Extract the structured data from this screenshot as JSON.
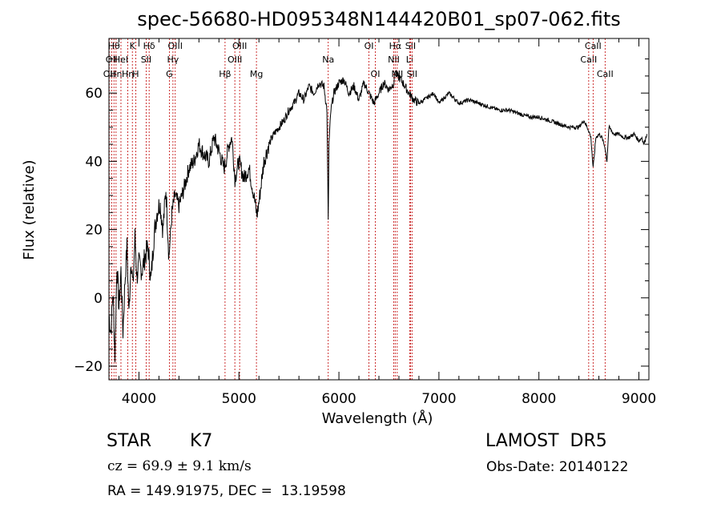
{
  "chart_data": {
    "type": "line",
    "title": "spec-56680-HD095348N144420B01_sp07-062.fits",
    "xlabel": "Wavelength (Å)",
    "ylabel": "Flux (relative)",
    "xlim": [
      3700,
      9100
    ],
    "ylim": [
      -24,
      76
    ],
    "xticks": [
      4000,
      5000,
      6000,
      7000,
      8000,
      9000
    ],
    "xtick_labels": [
      "4000",
      "5000",
      "6000",
      "7000",
      "8000",
      "9000"
    ],
    "yticks": [
      -20,
      0,
      20,
      40,
      60
    ],
    "ytick_labels": [
      "−20",
      "0",
      "20",
      "40",
      "60"
    ],
    "grid": false,
    "series": [
      {
        "x": [
          3700,
          3720,
          3740,
          3760,
          3780,
          3800,
          3820,
          3840,
          3860,
          3880,
          3900,
          3920,
          3940,
          3960,
          3980,
          4000,
          4030,
          4060,
          4090,
          4120,
          4150,
          4180,
          4210,
          4240,
          4270,
          4300,
          4330,
          4360,
          4400,
          4450,
          4500,
          4550,
          4600,
          4650,
          4700,
          4750,
          4800,
          4850,
          4870,
          4900,
          4930,
          4960,
          5000,
          5050,
          5100,
          5150,
          5180,
          5200,
          5250,
          5300,
          5350,
          5400,
          5450,
          5500,
          5550,
          5600,
          5650,
          5700,
          5750,
          5800,
          5850,
          5880,
          5893,
          5900,
          5920,
          5950,
          6000,
          6050,
          6100,
          6150,
          6200,
          6250,
          6300,
          6350,
          6400,
          6450,
          6500,
          6550,
          6563,
          6580,
          6620,
          6660,
          6700,
          6750,
          6800,
          6850,
          6900,
          6950,
          7000,
          7100,
          7200,
          7300,
          7400,
          7500,
          7600,
          7700,
          7800,
          7900,
          8000,
          8100,
          8200,
          8300,
          8400,
          8450,
          8498,
          8520,
          8542,
          8570,
          8600,
          8630,
          8662,
          8680,
          8700,
          8750,
          8800,
          8850,
          8900,
          8950,
          9000,
          9030,
          9050,
          9080
        ],
        "y": [
          -5,
          -10,
          2,
          -17,
          10,
          -3,
          8,
          -10,
          5,
          15,
          -5,
          12,
          3,
          18,
          6,
          10,
          8,
          12,
          15,
          5,
          18,
          25,
          28,
          20,
          32,
          12,
          25,
          30,
          27,
          32,
          38,
          40,
          45,
          42,
          40,
          47,
          43,
          38,
          40,
          45,
          47,
          35,
          40,
          35,
          38,
          30,
          24,
          28,
          40,
          45,
          48,
          50,
          52,
          55,
          57,
          60,
          58,
          62,
          60,
          63,
          62,
          55,
          22,
          45,
          55,
          60,
          63,
          64,
          60,
          62,
          58,
          63,
          60,
          57,
          60,
          63,
          61,
          63,
          67,
          65,
          64,
          62,
          60,
          58,
          57,
          58,
          59,
          60,
          57,
          60,
          57,
          58,
          57,
          56,
          55,
          55,
          54,
          53,
          53,
          52,
          51,
          50,
          50,
          52,
          49,
          47,
          38,
          47,
          48,
          47,
          44,
          40,
          50,
          48,
          48,
          47,
          47,
          48,
          46,
          47,
          45,
          48
        ]
      }
    ],
    "line_marks": [
      {
        "x": 3703,
        "label": "OII",
        "row": 2
      },
      {
        "x": 3727,
        "label": "OII",
        "row": 1
      },
      {
        "x": 3750,
        "label": "Hθ",
        "row": 0
      },
      {
        "x": 3771,
        "label": "Hη",
        "row": 2
      },
      {
        "x": 3820,
        "label": "HeI",
        "row": 1
      },
      {
        "x": 3889,
        "label": "Hη",
        "row": 2
      },
      {
        "x": 3934,
        "label": "K",
        "row": 0
      },
      {
        "x": 3968,
        "label": "H",
        "row": 2
      },
      {
        "x": 4072,
        "label": "SII",
        "row": 1
      },
      {
        "x": 4102,
        "label": "Hδ",
        "row": 0
      },
      {
        "x": 4304,
        "label": "G",
        "row": 2
      },
      {
        "x": 4340,
        "label": "Hγ",
        "row": 1
      },
      {
        "x": 4363,
        "label": "OIII",
        "row": 0
      },
      {
        "x": 4861,
        "label": "Hβ",
        "row": 2
      },
      {
        "x": 4959,
        "label": "OIII",
        "row": 1
      },
      {
        "x": 5007,
        "label": "OIII",
        "row": 0
      },
      {
        "x": 5175,
        "label": "Mg",
        "row": 2
      },
      {
        "x": 5893,
        "label": "Na",
        "row": 1
      },
      {
        "x": 6300,
        "label": "OI",
        "row": 0
      },
      {
        "x": 6364,
        "label": "OI",
        "row": 2
      },
      {
        "x": 6548,
        "label": "NII",
        "row": 1
      },
      {
        "x": 6563,
        "label": "Hα",
        "row": 0
      },
      {
        "x": 6583,
        "label": "NII",
        "row": 2
      },
      {
        "x": 6707,
        "label": "Li",
        "row": 1
      },
      {
        "x": 6716,
        "label": "SII",
        "row": 0
      },
      {
        "x": 6731,
        "label": "SII",
        "row": 2
      },
      {
        "x": 8498,
        "label": "CaII",
        "row": 1
      },
      {
        "x": 8542,
        "label": "CaII",
        "row": 0
      },
      {
        "x": 8662,
        "label": "CaII",
        "row": 2
      }
    ]
  },
  "footer": {
    "obj_class": "STAR",
    "obj_subclass": "K7",
    "survey": "LAMOST  DR5",
    "redshift": "cz = 69.9 ± 9.1 km/s",
    "obs_date": "Obs-Date: 20140122",
    "coords": "RA = 149.91975, DEC =  13.19598"
  }
}
